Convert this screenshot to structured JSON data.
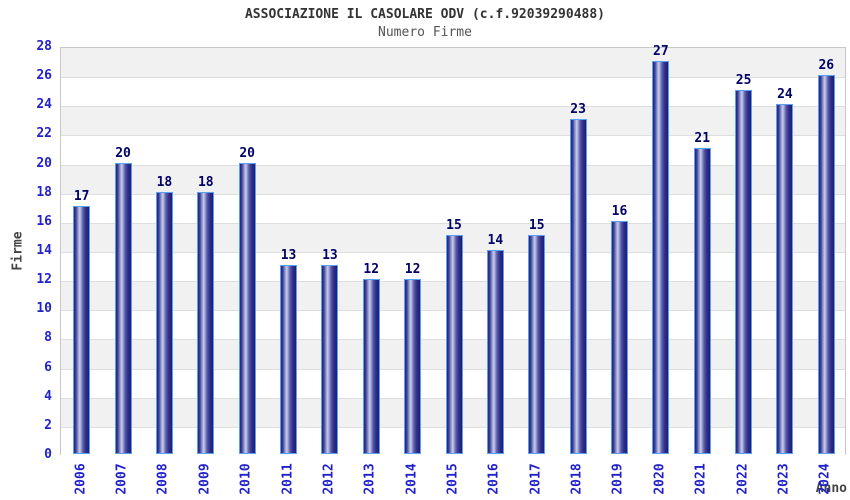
{
  "header": {
    "title": "ASSOCIAZIONE IL CASOLARE ODV (c.f.92039290488)",
    "subtitle": "Numero Firme"
  },
  "chart_data": {
    "type": "bar",
    "title": "ASSOCIAZIONE IL CASOLARE ODV (c.f.92039290488)",
    "subtitle": "Numero Firme",
    "xlabel": "Anno",
    "ylabel": "Firme",
    "categories": [
      "2006",
      "2007",
      "2008",
      "2009",
      "2010",
      "2011",
      "2012",
      "2013",
      "2014",
      "2015",
      "2016",
      "2017",
      "2018",
      "2019",
      "2020",
      "2021",
      "2022",
      "2023",
      "2024"
    ],
    "values": [
      17,
      20,
      18,
      18,
      20,
      13,
      13,
      12,
      12,
      15,
      14,
      15,
      23,
      16,
      27,
      21,
      25,
      24,
      26
    ],
    "ylim": [
      0,
      28
    ],
    "ytick_step": 2,
    "grid": true,
    "legend": "none",
    "band_fill_alternating": true,
    "colors": {
      "tick_label": "#2222cc",
      "value_label": "#000066",
      "title": "#333333",
      "subtitle": "#555555",
      "axis_title": "#444444",
      "band_gray": "#f1f1f1",
      "band_white": "#ffffff",
      "gridline": "#dedede",
      "plot_border": "#c8c8c8",
      "bar_edge": "#5aa0f0",
      "bar_dark": "#1d1d78",
      "bar_light": "#c9cdea"
    }
  }
}
